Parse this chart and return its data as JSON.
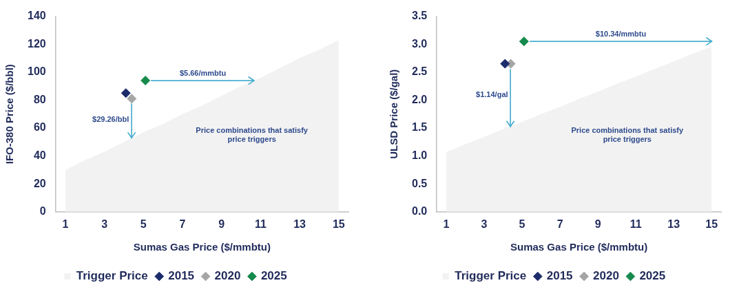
{
  "chart_data": [
    {
      "type": "scatter",
      "xlabel": "Sumas Gas Price ($/mmbtu)",
      "ylabel": "IFO-380 Price ($/bbl)",
      "xlim": [
        0.5,
        15.5
      ],
      "xticks": [
        1,
        3,
        5,
        7,
        9,
        11,
        13,
        15
      ],
      "ylim": [
        0,
        140
      ],
      "yticks": [
        0,
        20,
        40,
        60,
        80,
        100,
        120,
        140
      ],
      "grid": false,
      "legend": "bottom",
      "marker": "diamond",
      "series": [
        {
          "name": "Trigger Price",
          "type": "area",
          "color": "#f2f2f2",
          "marker": "none",
          "x": [
            1,
            2,
            3,
            4,
            5,
            6,
            7,
            8,
            9,
            10,
            11,
            12,
            13,
            14,
            15
          ],
          "values": [
            30,
            37,
            43,
            50,
            57,
            63,
            70,
            76,
            83,
            90,
            96,
            103,
            110,
            116,
            123
          ]
        },
        {
          "name": "2015",
          "color": "#1c2c6b",
          "x": [
            4.1
          ],
          "values": [
            85
          ]
        },
        {
          "name": "2020",
          "color": "#a5a5a5",
          "x": [
            4.4
          ],
          "values": [
            81
          ]
        },
        {
          "name": "2025",
          "color": "#168a4c",
          "x": [
            5.1
          ],
          "values": [
            94
          ]
        }
      ],
      "annotations": [
        "$29.26/bbl",
        "$5.66/mmbtu",
        "Price combinations that satisfy price triggers"
      ]
    },
    {
      "type": "scatter",
      "xlabel": "Sumas Gas Price ($/mmbtu)",
      "ylabel": "ULSD Price ($/gal)",
      "xlim": [
        0.5,
        15.5
      ],
      "xticks": [
        1,
        3,
        5,
        7,
        9,
        11,
        13,
        15
      ],
      "ylim": [
        0,
        3.5
      ],
      "yticks": [
        {
          "value": 0,
          "label": "0.0"
        },
        0.5,
        {
          "value": 1,
          "label": "1.0"
        },
        1.5,
        {
          "value": 2,
          "label": "2.0"
        },
        2.5,
        {
          "value": 3,
          "label": "3.0"
        },
        3.5
      ],
      "grid": false,
      "legend": "bottom",
      "marker": "diamond",
      "series": [
        {
          "name": "Trigger Price",
          "type": "area",
          "color": "#f2f2f2",
          "marker": "none",
          "x": [
            1,
            2,
            3,
            4,
            5,
            6,
            7,
            8,
            9,
            10,
            11,
            12,
            13,
            14,
            15
          ],
          "values": [
            1.07,
            1.21,
            1.34,
            1.48,
            1.61,
            1.75,
            1.88,
            2.02,
            2.15,
            2.29,
            2.42,
            2.56,
            2.69,
            2.83,
            2.96
          ]
        },
        {
          "name": "2015",
          "color": "#1c2c6b",
          "x": [
            4.1
          ],
          "values": [
            2.65
          ]
        },
        {
          "name": "2020",
          "color": "#a5a5a5",
          "x": [
            4.4
          ],
          "values": [
            2.65
          ]
        },
        {
          "name": "2025",
          "color": "#168a4c",
          "x": [
            5.1
          ],
          "values": [
            3.05
          ]
        }
      ],
      "annotations": [
        "$1.14/gal",
        "$10.34/mmbtu",
        "Price combinations that satisfy price triggers"
      ]
    }
  ]
}
